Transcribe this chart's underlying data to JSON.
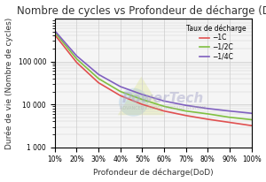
{
  "title": "Nombre de cycles vs Profondeur de décharge (DoD)",
  "xlabel": "Profondeur de décharge(DoD)",
  "ylabel": "Durée de vie (Nombre de cycles)",
  "legend_title": "Taux de décharge",
  "legend_labels": [
    "−1C",
    "−1/2C",
    "−1/4C"
  ],
  "line_colors": [
    "#e05050",
    "#80c040",
    "#8060c0"
  ],
  "dod_values": [
    0.1,
    0.2,
    0.3,
    0.4,
    0.5,
    0.6,
    0.7,
    0.8,
    0.9,
    1.0
  ],
  "cycles_1C": [
    420000,
    95000,
    32000,
    16000,
    10000,
    7000,
    5500,
    4500,
    3800,
    3200
  ],
  "cycles_half": [
    480000,
    115000,
    40000,
    20000,
    13000,
    9000,
    7000,
    6000,
    5000,
    4400
  ],
  "cycles_qtr": [
    520000,
    135000,
    50000,
    26000,
    17000,
    12000,
    9500,
    8000,
    7000,
    6200
  ],
  "ylim_min": 1000,
  "ylim_max": 1000000,
  "bg_color": "#f5f5f5",
  "grid_color": "#cccccc",
  "title_fontsize": 8.5,
  "axis_label_fontsize": 6.5,
  "tick_fontsize": 5.5,
  "legend_fontsize": 5.5
}
